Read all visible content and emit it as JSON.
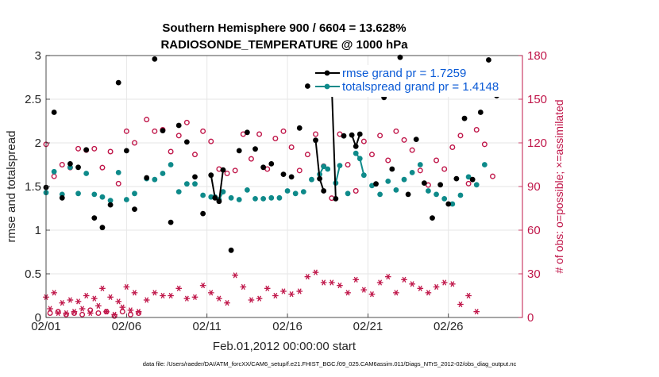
{
  "chart_data": {
    "type": "scatter",
    "title_line1": "Southern Hemisphere 900 / 6604 = 13.628%",
    "title_line2": "RADIOSONDE_TEMPERATURE @ 1000 hPa",
    "xlabel": "Feb.01,2012 00:00:00 start",
    "ylabel_left": "rmse and totalspread",
    "ylabel_right": "# of obs: o=possible; ×=assimilated",
    "footnote": "data file: /Users/raeder/DAI/ATM_forcXX/CAM6_setup/f.e21.FHIST_BGC.f09_025.CAM6assim.011/Diags_NTrS_2012-02/obs_diag_output.nc",
    "xlim": [
      0,
      29.6
    ],
    "ylim_left": [
      0,
      3
    ],
    "ylim_right": [
      0,
      180
    ],
    "xticks": [
      {
        "v": 0,
        "label": "02/01"
      },
      {
        "v": 5,
        "label": "02/06"
      },
      {
        "v": 10,
        "label": "02/11"
      },
      {
        "v": 15,
        "label": "02/16"
      },
      {
        "v": 20,
        "label": "02/21"
      },
      {
        "v": 25,
        "label": "02/26"
      }
    ],
    "yticks_left": [
      "0",
      "0.5",
      "1",
      "1.5",
      "2",
      "2.5",
      "3"
    ],
    "yticks_right": [
      "0",
      "30",
      "60",
      "90",
      "120",
      "150",
      "180"
    ],
    "grid": true,
    "legend": [
      {
        "label": "rmse grand pr = 1.7259",
        "color": "#000000"
      },
      {
        "label": "totalspread grand pr = 1.4148",
        "color": "#0e8a8a"
      }
    ],
    "legend_location": "top-right",
    "colors": {
      "rmse": "#000000",
      "spread": "#0e8a8a",
      "obs": "#c0174a",
      "grid": "#e6e6e6"
    },
    "x": [
      0,
      0.25,
      0.5,
      0.75,
      1,
      1.25,
      1.5,
      1.75,
      2,
      2.25,
      2.5,
      2.75,
      3,
      3.25,
      3.5,
      3.75,
      4,
      4.25,
      4.5,
      4.75,
      5,
      5.25,
      5.5,
      5.75,
      6,
      6.25,
      6.5,
      6.75,
      7,
      7.25,
      7.5,
      7.75,
      8,
      8.25,
      8.5,
      8.75,
      9,
      9.25,
      9.5,
      9.75,
      10,
      10.25,
      10.5,
      10.75,
      11,
      11.25,
      11.5,
      11.75,
      12,
      12.25,
      12.5,
      12.75,
      13,
      13.25,
      13.5,
      13.75,
      14,
      14.25,
      14.5,
      14.75,
      15,
      15.25,
      15.5,
      15.75,
      16,
      16.25,
      16.5,
      16.75,
      17,
      17.25,
      17.5,
      17.75,
      18,
      18.25,
      18.5,
      18.75,
      19,
      19.25,
      19.5,
      19.75,
      20,
      20.25,
      20.5,
      20.75,
      21,
      21.25,
      21.5,
      21.75,
      22,
      22.25,
      22.5,
      22.75,
      23,
      23.25,
      23.5,
      23.75,
      24,
      24.25,
      24.5,
      24.75,
      25,
      25.25,
      25.5,
      25.75,
      26,
      26.25,
      26.5,
      26.75,
      27,
      27.25,
      27.5,
      27.75,
      28,
      28.25,
      28.5,
      28.75,
      29,
      29.25,
      29.5
    ],
    "series": [
      {
        "name": "rmse",
        "connect_consecutive": true,
        "values": [
          1.49,
          null,
          2.35,
          null,
          1.37,
          null,
          1.76,
          null,
          1.72,
          null,
          1.92,
          null,
          1.14,
          null,
          1.03,
          null,
          1.29,
          null,
          2.69,
          null,
          1.91,
          null,
          1.24,
          null,
          null,
          1.6,
          null,
          2.96,
          null,
          2.14,
          null,
          1.09,
          null,
          2.2,
          null,
          2.01,
          null,
          1.61,
          null,
          1.19,
          null,
          1.63,
          1.37,
          1.33,
          1.69,
          null,
          0.77,
          null,
          1.91,
          null,
          2.12,
          null,
          1.93,
          null,
          1.72,
          null,
          1.76,
          null,
          null,
          1.64,
          null,
          1.61,
          null,
          2.17,
          null,
          2.65,
          null,
          2.03,
          1.59,
          1.45,
          null,
          2.66,
          1.36,
          null,
          2.08,
          null,
          2.09,
          1.96,
          2.1,
          null,
          2.73,
          null,
          1.53,
          null,
          2.52,
          null,
          1.7,
          null,
          2.98,
          null,
          1.41,
          null,
          2.04,
          null,
          1.54,
          null,
          1.14,
          null,
          1.52,
          null,
          1.3,
          null,
          1.59,
          null,
          2.28,
          null,
          1.58,
          null,
          2.35,
          null,
          2.95,
          null,
          2.54,
          null
        ]
      },
      {
        "name": "totalspread",
        "connect_consecutive": true,
        "values": [
          1.43,
          null,
          1.67,
          null,
          1.41,
          null,
          1.72,
          null,
          1.42,
          null,
          1.65,
          null,
          1.41,
          null,
          1.38,
          null,
          1.34,
          null,
          1.66,
          null,
          1.35,
          null,
          1.42,
          null,
          null,
          1.59,
          null,
          1.58,
          null,
          1.65,
          null,
          1.75,
          null,
          1.44,
          null,
          1.53,
          null,
          1.53,
          null,
          1.4,
          null,
          1.38,
          1.38,
          1.35,
          1.44,
          null,
          1.37,
          null,
          1.35,
          null,
          1.46,
          null,
          1.36,
          null,
          1.36,
          null,
          1.37,
          null,
          1.37,
          null,
          1.45,
          null,
          1.42,
          null,
          1.44,
          null,
          1.58,
          null,
          1.64,
          1.73,
          1.7,
          null,
          1.54,
          1.74,
          null,
          1.42,
          null,
          1.88,
          1.82,
          1.63,
          null,
          1.51,
          null,
          1.41,
          null,
          1.56,
          null,
          1.46,
          null,
          1.58,
          null,
          1.66,
          null,
          1.75,
          null,
          1.45,
          null,
          1.41,
          null,
          1.36,
          null,
          1.3,
          null,
          1.4,
          null,
          1.61,
          null,
          1.52,
          null,
          1.75,
          null
        ]
      },
      {
        "name": "obs_possible",
        "marker": "circle",
        "values": [
          119,
          3,
          97,
          4,
          105,
          2,
          103,
          3,
          116,
          2,
          115,
          5,
          116,
          3,
          103,
          4,
          114,
          1,
          92,
          4,
          128,
          2,
          120,
          3,
          null,
          136,
          null,
          128,
          null,
          129,
          null,
          114,
          null,
          125,
          null,
          134,
          null,
          112,
          null,
          128,
          null,
          121,
          null,
          102,
          null,
          99,
          null,
          101,
          null,
          126,
          null,
          109,
          null,
          126,
          null,
          102,
          null,
          123,
          null,
          128,
          null,
          117,
          null,
          101,
          null,
          112,
          null,
          126,
          null,
          104,
          null,
          82,
          null,
          126,
          null,
          105,
          null,
          87,
          null,
          121,
          null,
          112,
          null,
          125,
          null,
          108,
          null,
          128,
          null,
          122,
          null,
          115,
          null,
          101,
          null,
          91,
          null,
          108,
          null,
          102,
          null,
          117,
          null,
          125,
          null,
          92,
          null,
          129,
          null,
          119,
          null,
          97,
          null
        ]
      },
      {
        "name": "obs_assimilated",
        "marker": "asterisk",
        "values": [
          14,
          6,
          17,
          3,
          10,
          3,
          12,
          4,
          11,
          6,
          15,
          3,
          13,
          8,
          20,
          4,
          14,
          2,
          11,
          7,
          21,
          5,
          17,
          4,
          null,
          12,
          null,
          17,
          null,
          15,
          null,
          15,
          null,
          20,
          null,
          13,
          null,
          14,
          null,
          22,
          null,
          17,
          null,
          13,
          null,
          10,
          null,
          29,
          null,
          21,
          null,
          12,
          null,
          13,
          null,
          20,
          null,
          15,
          null,
          18,
          null,
          16,
          null,
          18,
          null,
          28,
          null,
          31,
          null,
          24,
          null,
          24,
          null,
          22,
          null,
          17,
          null,
          26,
          null,
          19,
          null,
          16,
          null,
          24,
          null,
          28,
          null,
          17,
          null,
          26,
          null,
          23,
          null,
          20,
          null,
          17,
          null,
          21,
          null,
          24,
          null,
          23,
          null,
          9,
          null,
          15,
          null,
          4,
          null
        ]
      }
    ]
  }
}
